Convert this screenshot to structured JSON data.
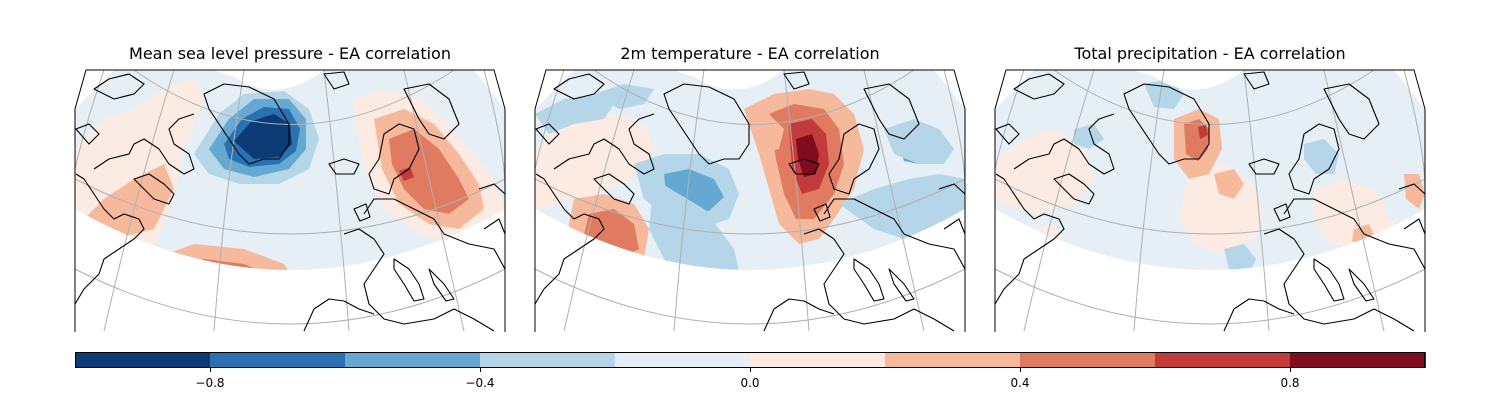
{
  "panels": [
    {
      "title": "Mean sea level pressure - EA correlation",
      "variable": "msl"
    },
    {
      "title": "2m temperature - EA correlation",
      "variable": "t2m"
    },
    {
      "title": "Total precipitation - EA correlation",
      "variable": "tp"
    }
  ],
  "colorbar": {
    "levels": [
      -1.0,
      -0.8,
      -0.6,
      -0.4,
      -0.2,
      0.0,
      0.2,
      0.4,
      0.6,
      0.8,
      1.0
    ],
    "colors": [
      "#0b3a75",
      "#2a71b2",
      "#65a9d3",
      "#b4d6e8",
      "#e5eff5",
      "#fcebe2",
      "#f7b99c",
      "#e07b61",
      "#c23b3a",
      "#7f0c1f"
    ],
    "tick_values": [
      -0.8,
      -0.4,
      0.0,
      0.4,
      0.8
    ],
    "tick_labels": [
      "−0.8",
      "−0.4",
      "0.0",
      "0.4",
      "0.8"
    ]
  },
  "map_style": {
    "background_level_color": "#e5eff5",
    "gridline_color": "#b0b0b0",
    "coastline_color": "#000000"
  }
}
